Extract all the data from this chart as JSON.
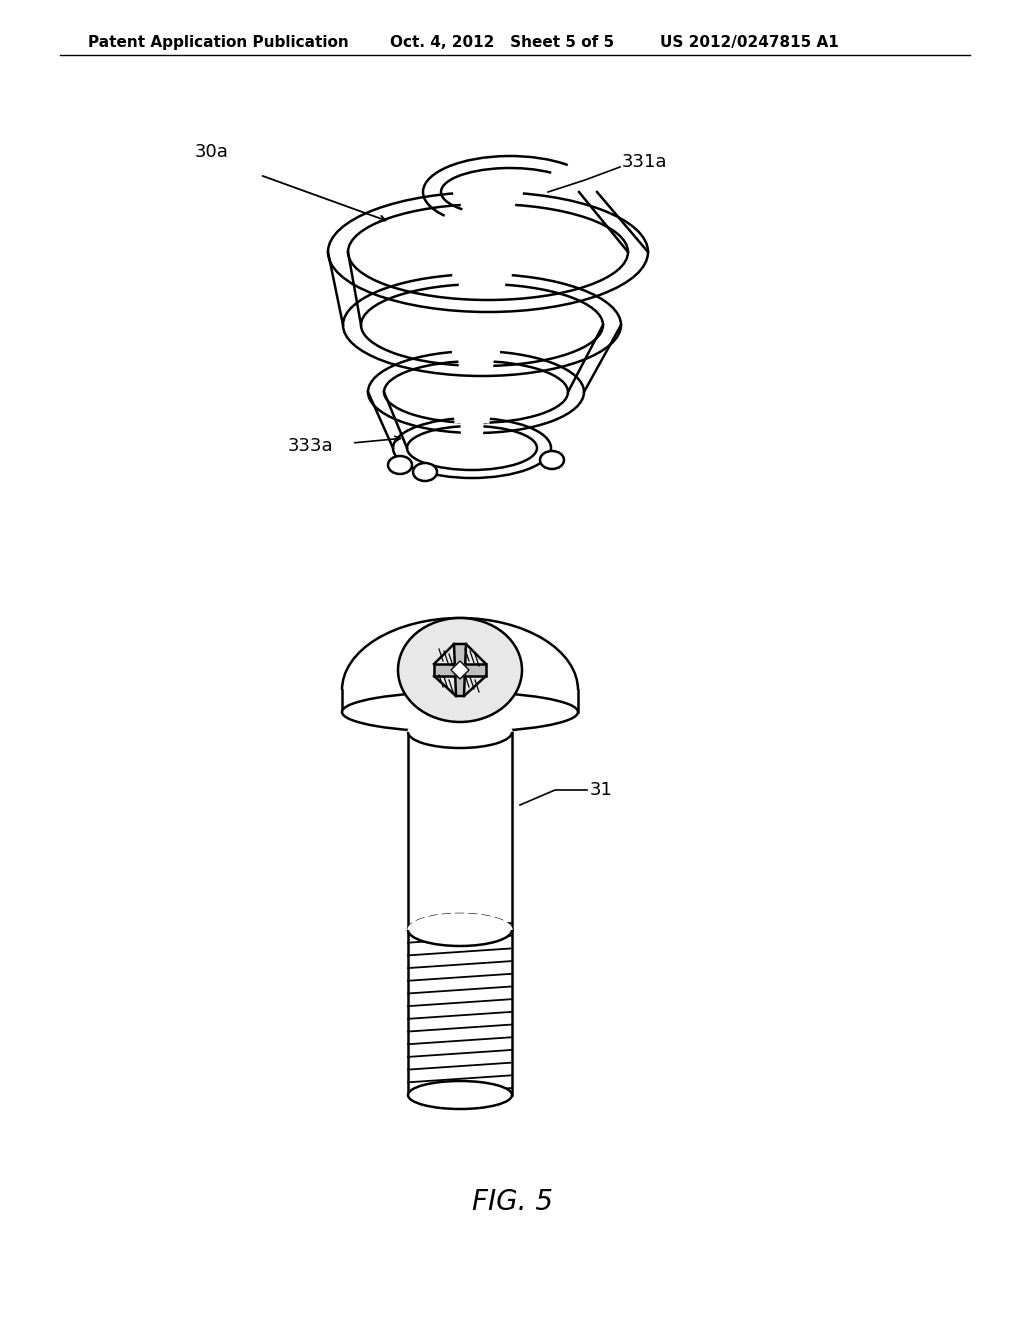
{
  "header_left": "Patent Application Publication",
  "header_mid": "Oct. 4, 2012   Sheet 5 of 5",
  "header_right": "US 2012/0247815 A1",
  "label_30a": "30a",
  "label_331a": "331a",
  "label_333a": "333a",
  "label_31": "31",
  "caption": "FIG. 5",
  "bg_color": "#ffffff",
  "line_color": "#000000",
  "header_fontsize": 11,
  "label_fontsize": 13,
  "caption_fontsize": 20
}
